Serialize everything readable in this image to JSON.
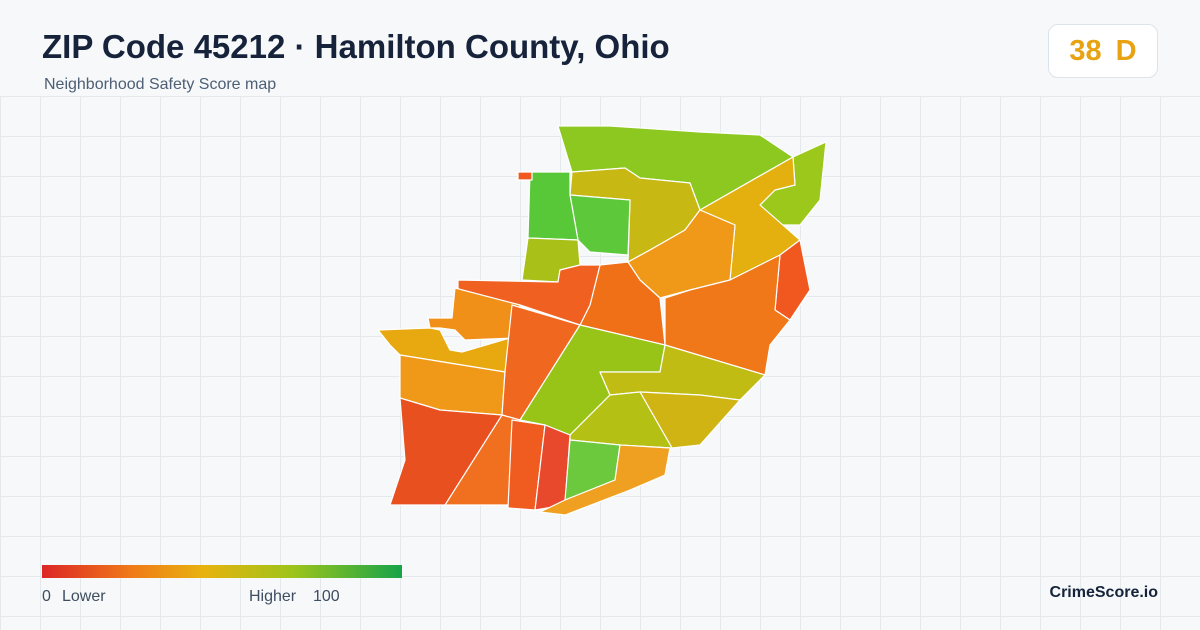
{
  "header": {
    "title": "ZIP Code 45212 · Hamilton County, Ohio",
    "subtitle": "Neighborhood Safety Score map"
  },
  "score": {
    "value": 38,
    "grade": "D"
  },
  "legend": {
    "min": 0,
    "min_label": "Lower",
    "max_label": "Higher",
    "max": 100
  },
  "brand": "CrimeScore.io"
}
